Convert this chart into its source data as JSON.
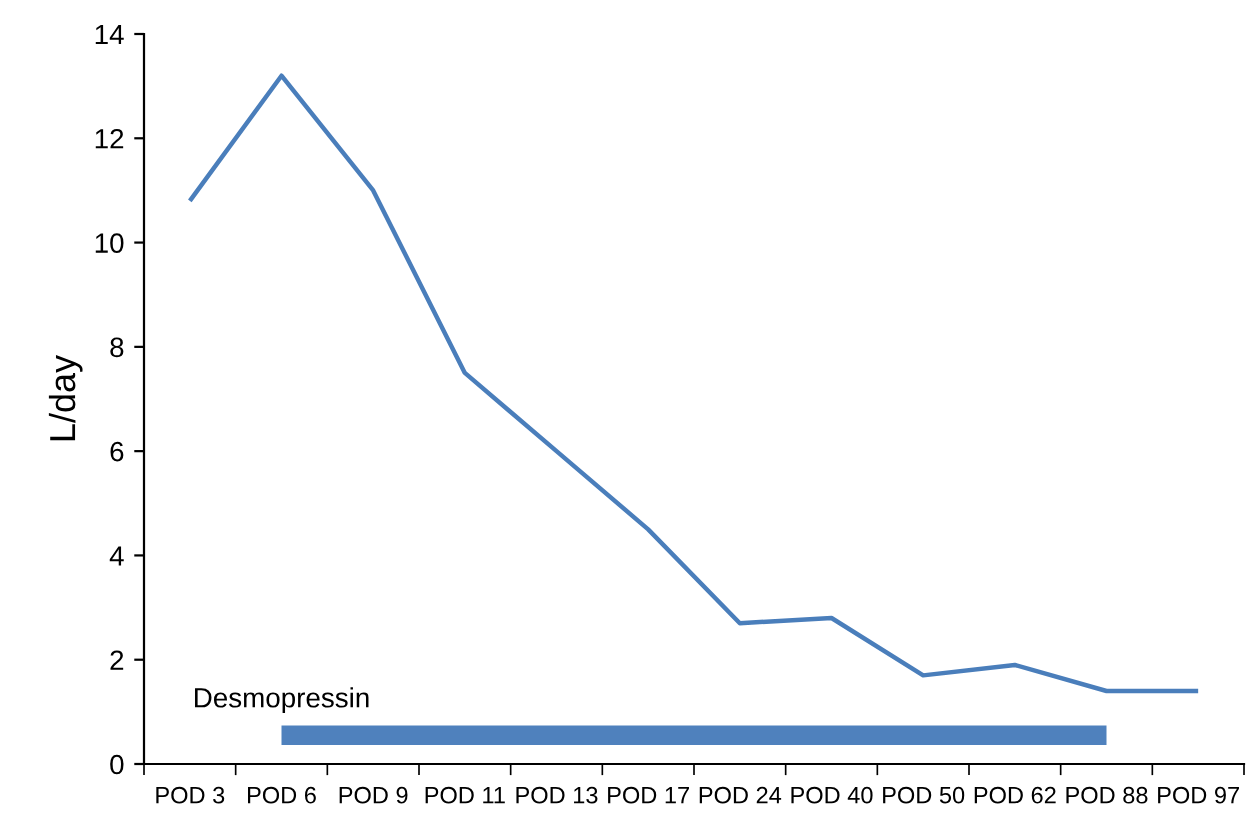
{
  "chart_data": {
    "type": "line",
    "ylabel": "L/day",
    "categories": [
      "POD 3",
      "POD 6",
      "POD 9",
      "POD 11",
      "POD 13",
      "POD 17",
      "POD 24",
      "POD 40",
      "POD 50",
      "POD 62",
      "POD 88",
      "POD 97"
    ],
    "series": [
      {
        "color": "#4a7ebb",
        "values": [
          10.8,
          13.2,
          11.0,
          7.5,
          6.0,
          4.5,
          2.7,
          2.8,
          1.7,
          1.9,
          1.4,
          1.4
        ]
      },
      {
        "name": "Desmopressin",
        "color": "#4f81bd",
        "values": [
          null,
          0.55,
          0.55,
          0.55,
          0.55,
          0.55,
          0.55,
          0.55,
          0.55,
          0.55,
          0.55,
          null
        ]
      }
    ],
    "ylim": [
      0,
      14
    ],
    "yticks": [
      0,
      2,
      4,
      6,
      8,
      10,
      12,
      14
    ],
    "grid": false,
    "legend": false,
    "marker": "none",
    "line_style": "solid"
  }
}
